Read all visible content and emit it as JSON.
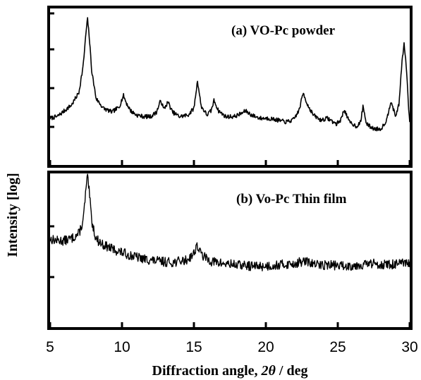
{
  "chart_data": [
    {
      "type": "line",
      "panel_label": "(a) VO-Pc powder",
      "legend_position": "top-right",
      "xlim": [
        5,
        30
      ],
      "yscale": "log",
      "grid": false,
      "series": [
        {
          "x": [
            5,
            5.5,
            6,
            6.5,
            7,
            7.3,
            7.5,
            7.6,
            7.7,
            7.9,
            8.2,
            8.7,
            9.3,
            9.8,
            10.1,
            10.3,
            10.6,
            11.0,
            11.5,
            12.0,
            12.4,
            12.7,
            12.9,
            13.2,
            13.5,
            14.0,
            14.6,
            15.0,
            15.25,
            15.5,
            15.9,
            16.2,
            16.4,
            16.7,
            17.2,
            17.8,
            18.3,
            18.6,
            19.0,
            19.6,
            20.2,
            20.8,
            21.4,
            21.9,
            22.3,
            22.6,
            22.9,
            23.3,
            23.8,
            24.3,
            24.9,
            25.2,
            25.45,
            25.8,
            26.3,
            26.6,
            26.75,
            27.0,
            27.5,
            28.0,
            28.4,
            28.7,
            29.0,
            29.25,
            29.45,
            29.6,
            29.75,
            29.9,
            30.0
          ],
          "y": [
            0.15,
            0.16,
            0.2,
            0.25,
            0.4,
            1.1,
            4.0,
            6.8,
            4.0,
            0.9,
            0.32,
            0.22,
            0.19,
            0.23,
            0.36,
            0.27,
            0.2,
            0.17,
            0.16,
            0.16,
            0.19,
            0.3,
            0.21,
            0.28,
            0.19,
            0.16,
            0.17,
            0.22,
            0.63,
            0.24,
            0.17,
            0.2,
            0.3,
            0.2,
            0.16,
            0.16,
            0.18,
            0.2,
            0.17,
            0.15,
            0.15,
            0.14,
            0.13,
            0.14,
            0.2,
            0.4,
            0.25,
            0.17,
            0.14,
            0.15,
            0.12,
            0.14,
            0.21,
            0.13,
            0.11,
            0.13,
            0.24,
            0.12,
            0.1,
            0.1,
            0.14,
            0.3,
            0.16,
            0.25,
            1.2,
            2.6,
            1.2,
            0.28,
            0.12
          ]
        }
      ]
    },
    {
      "type": "line",
      "panel_label": "(b) Vo-Pc Thin film",
      "legend_position": "top-right",
      "xlim": [
        5,
        30
      ],
      "yscale": "log",
      "grid": false,
      "series": [
        {
          "x": [
            5,
            5.5,
            6,
            6.5,
            7,
            7.3,
            7.5,
            7.6,
            7.7,
            7.9,
            8.2,
            8.7,
            9.5,
            10.5,
            11.5,
            12.5,
            13.5,
            14.5,
            15.0,
            15.2,
            15.4,
            15.7,
            16.2,
            17.0,
            18.0,
            19.0,
            20.0,
            21.0,
            22.0,
            22.7,
            23.5,
            24.5,
            25.5,
            26.5,
            27.5,
            28.5,
            29.5,
            30.0
          ],
          "y": [
            0.55,
            0.52,
            0.52,
            0.56,
            0.66,
            1.0,
            3.0,
            4.5,
            3.0,
            1.0,
            0.55,
            0.45,
            0.38,
            0.32,
            0.28,
            0.26,
            0.25,
            0.27,
            0.34,
            0.45,
            0.36,
            0.3,
            0.26,
            0.24,
            0.23,
            0.22,
            0.22,
            0.23,
            0.24,
            0.26,
            0.23,
            0.23,
            0.22,
            0.23,
            0.24,
            0.23,
            0.24,
            0.24
          ]
        }
      ]
    }
  ],
  "xaxis": {
    "ticks": [
      "5",
      "10",
      "15",
      "20",
      "25",
      "30"
    ],
    "label_prefix": "Diffraction angle, ",
    "label_symbol": "2θ",
    "label_suffix": " / deg"
  },
  "ylabel": "Intensity [log]"
}
